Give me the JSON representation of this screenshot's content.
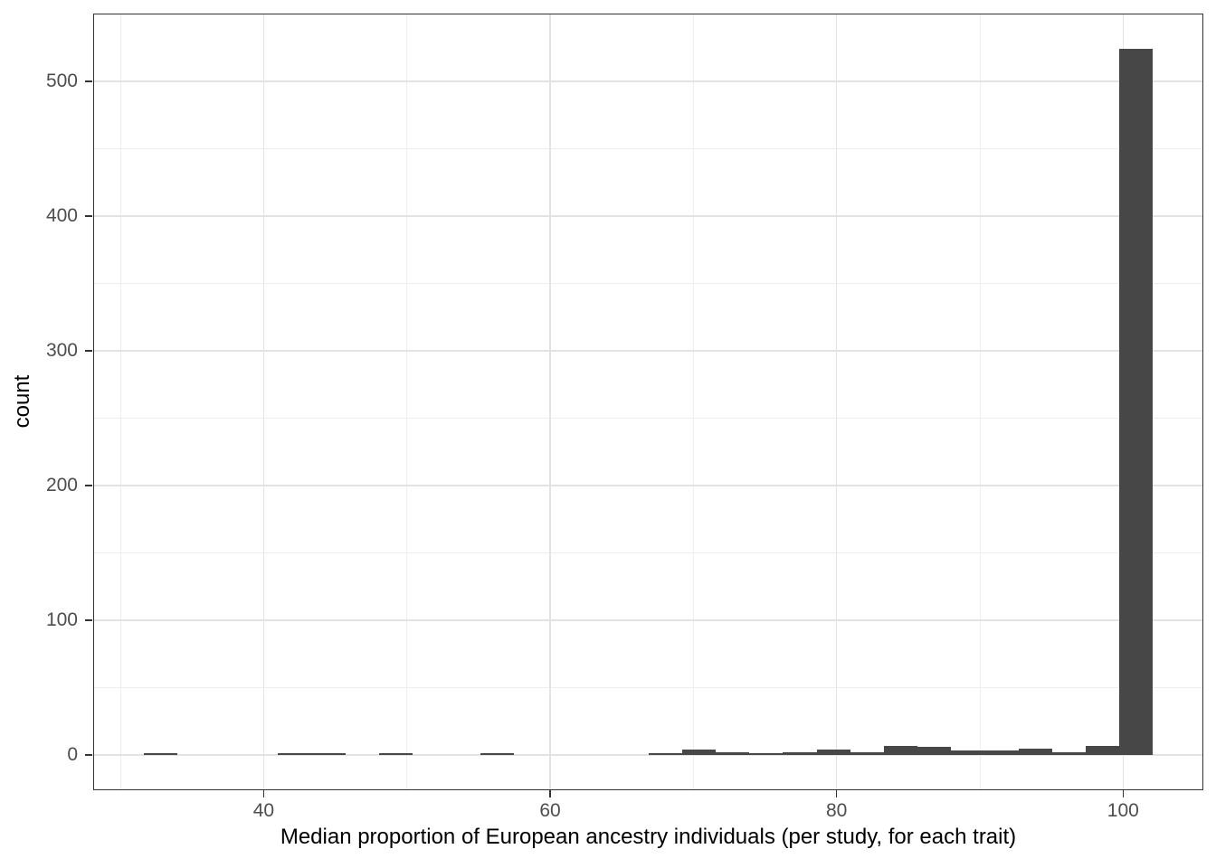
{
  "chart_data": {
    "type": "histogram",
    "title": "",
    "xlabel": "Median proportion of European ancestry individuals (per study, for each trait)",
    "ylabel": "count",
    "bin_start": 31.62,
    "bin_width": 2.349,
    "counts": [
      1,
      0,
      0,
      0,
      1,
      1,
      0,
      1,
      0,
      0,
      1,
      0,
      0,
      0,
      0,
      1,
      4,
      2,
      1,
      2,
      4,
      2,
      7,
      6,
      3,
      3,
      5,
      2,
      7,
      524
    ],
    "xlim": [
      28.1,
      105.6
    ],
    "ylim": [
      -26.2,
      550.2
    ],
    "x_ticks": [
      40,
      60,
      80,
      100
    ],
    "x_minor_gridlines": [
      30,
      50,
      70,
      90
    ],
    "y_ticks": [
      0,
      100,
      200,
      300,
      400,
      500
    ],
    "y_minor_gridlines": [
      50,
      150,
      250,
      350,
      450
    ],
    "legend": "none",
    "grid": "on",
    "colors": {
      "bar_fill": "#474747",
      "panel_border": "#333333",
      "grid_major": "#e3e3e3",
      "grid_minor": "#eeeeee",
      "axis_tick": "#333333",
      "tick_label": "#4d4d4d",
      "axis_title": "#000000",
      "background": "#ffffff"
    }
  }
}
